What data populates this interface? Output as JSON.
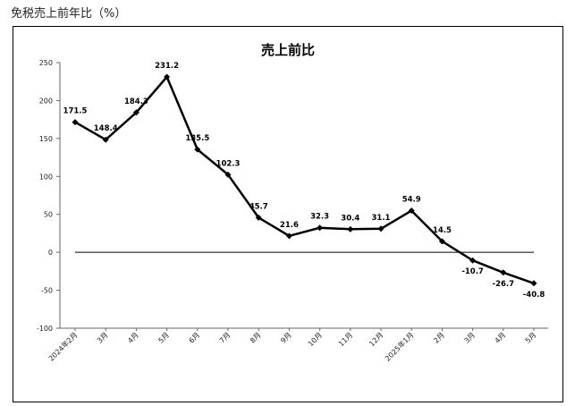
{
  "page_heading": "免税売上前年比（%）",
  "chart_data": {
    "type": "line",
    "title": "売上前比",
    "xlabel": "",
    "ylabel": "",
    "categories": [
      "2024年2月",
      "3月",
      "4月",
      "5月",
      "6月",
      "7月",
      "8月",
      "9月",
      "10月",
      "11月",
      "12月",
      "2025年1月",
      "2月",
      "3月",
      "4月",
      "5月"
    ],
    "series": [
      {
        "values": [
          171.5,
          148.4,
          184.3,
          231.2,
          135.5,
          102.3,
          45.7,
          21.6,
          32.3,
          30.4,
          31.1,
          54.9,
          14.5,
          -10.7,
          -26.7,
          -40.8
        ],
        "labels": [
          "171.5",
          "148.4",
          "184.3",
          "231.2",
          "135.5",
          "102.3",
          "45.7",
          "21.6",
          "32.3",
          "30.4",
          "31.1",
          "54.9",
          "14.5",
          "-10.7",
          "-26.7",
          "-40.8"
        ]
      }
    ],
    "ylim": [
      -100,
      250
    ],
    "yticks": [
      "250",
      "200",
      "150",
      "100",
      "50",
      "0",
      "-50",
      "-100"
    ],
    "ytick_values": [
      250,
      200,
      150,
      100,
      50,
      0,
      -50,
      -100
    ],
    "grid": false,
    "legend": "none",
    "zero_line": true,
    "line_color": "#000000",
    "marker": "diamond"
  }
}
